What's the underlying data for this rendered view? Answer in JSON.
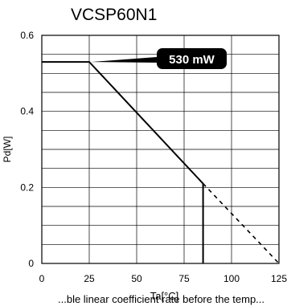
{
  "chart_data": {
    "type": "line",
    "title": "VCSP60N1",
    "xlabel": "Ta[°C]",
    "ylabel": "Pd[W]",
    "xlim": [
      0,
      125
    ],
    "ylim": [
      0,
      0.6
    ],
    "x_ticks": [
      "0",
      "25",
      "50",
      "75",
      "100",
      "125"
    ],
    "y_ticks": [
      "0",
      "0.2",
      "0.4",
      "0.6"
    ],
    "grid": true,
    "series": [
      {
        "style": "solid",
        "x": [
          0,
          25,
          85,
          85
        ],
        "y": [
          0.53,
          0.53,
          0.21,
          0
        ]
      },
      {
        "style": "dashed",
        "x": [
          85,
          125
        ],
        "y": [
          0.21,
          0
        ]
      }
    ],
    "annotation": {
      "text": "530 mW",
      "x": 25,
      "y": 0.53
    }
  },
  "bottom_note": "...ble linear coefficient rate before the temp..."
}
